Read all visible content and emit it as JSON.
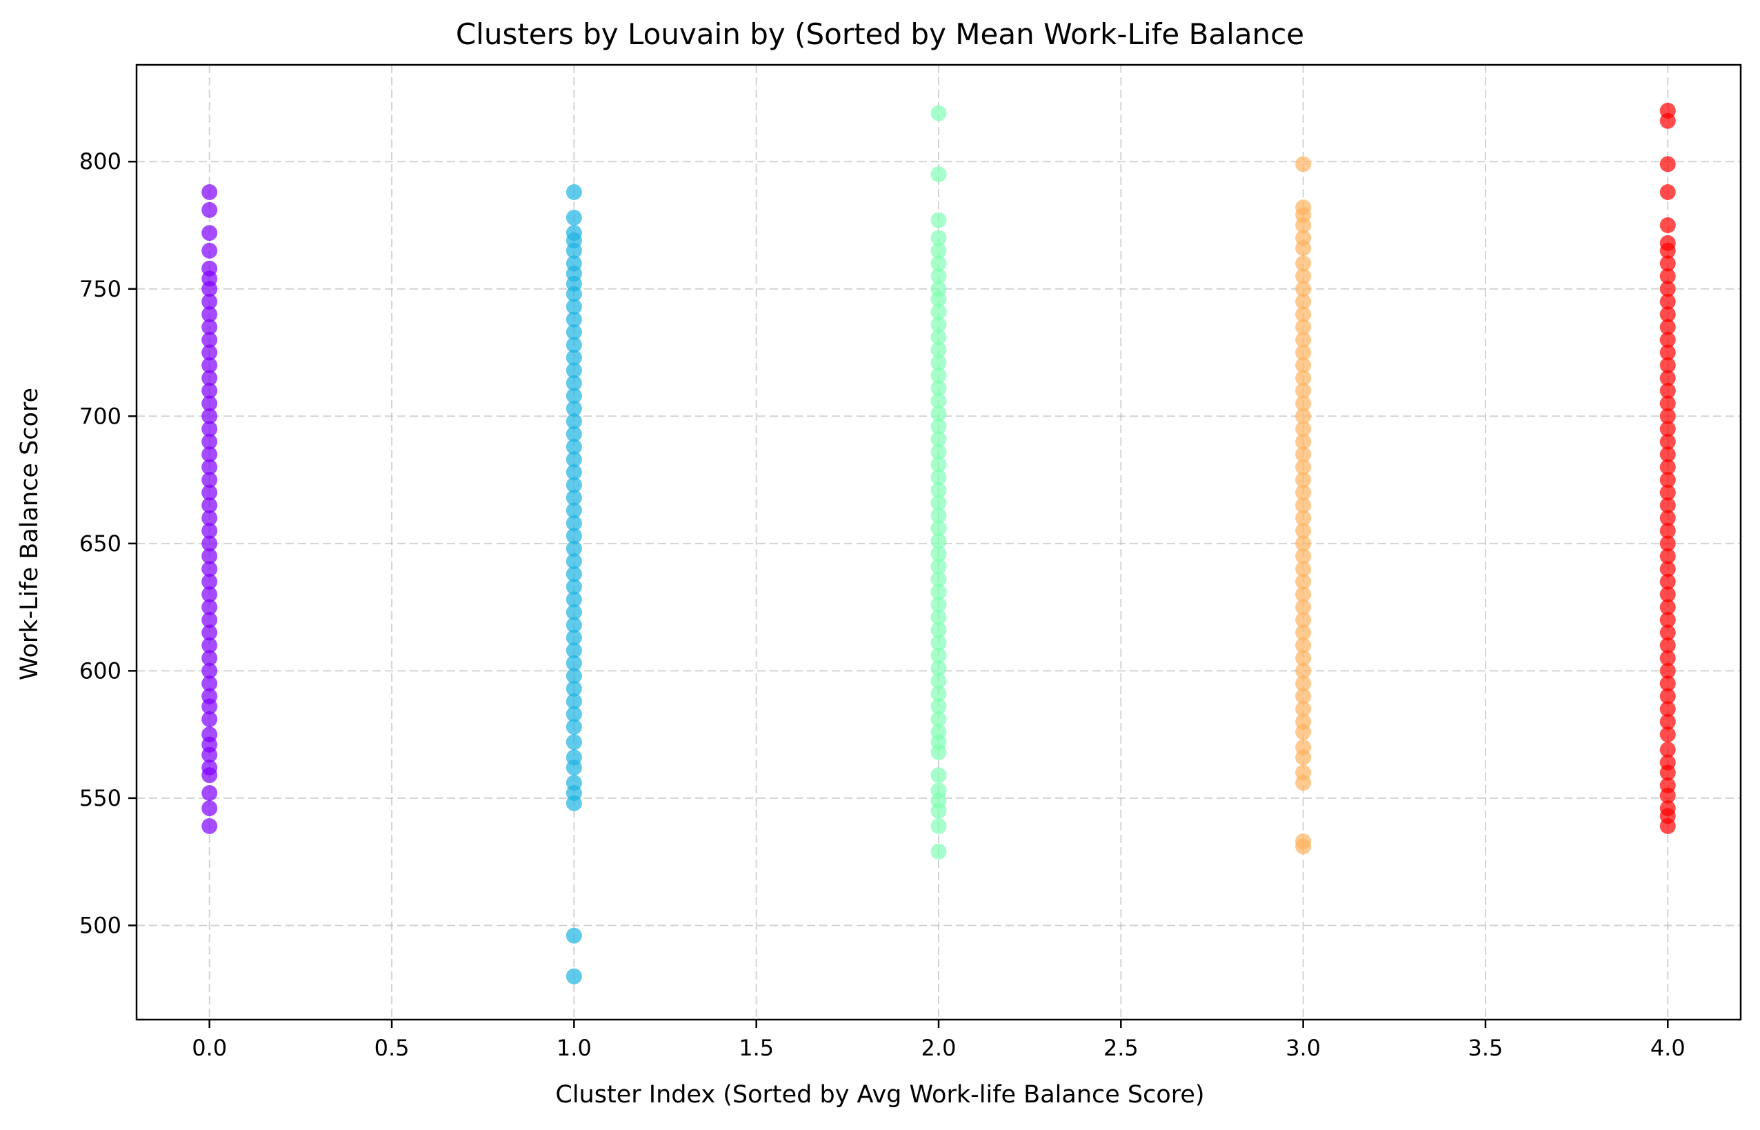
{
  "chart_data": {
    "type": "scatter",
    "title": "Clusters by Louvain by (Sorted by Mean Work-Life Balance",
    "xlabel": "Cluster Index (Sorted by Avg Work-life Balance Score)",
    "ylabel": "Work-Life Balance Score",
    "xlim": [
      -0.2,
      4.2
    ],
    "ylim": [
      463,
      838
    ],
    "xticks": [
      "0.0",
      "0.5",
      "1.0",
      "1.5",
      "2.0",
      "2.5",
      "3.0",
      "3.5",
      "4.0"
    ],
    "yticks": [
      "500",
      "550",
      "600",
      "650",
      "700",
      "750",
      "800"
    ],
    "grid": true,
    "series": [
      {
        "x": 0,
        "color": "#8000ff",
        "y": [
          539,
          546,
          552,
          559,
          562,
          567,
          571,
          575,
          581,
          586,
          590,
          595,
          600,
          605,
          610,
          615,
          620,
          625,
          630,
          635,
          640,
          645,
          650,
          655,
          660,
          665,
          670,
          675,
          680,
          685,
          690,
          695,
          700,
          705,
          710,
          715,
          720,
          725,
          730,
          735,
          740,
          745,
          750,
          754,
          758,
          765,
          772,
          781,
          788
        ]
      },
      {
        "x": 1,
        "color": "#1cb3e3",
        "y": [
          480,
          496,
          548,
          552,
          556,
          562,
          566,
          572,
          578,
          583,
          588,
          593,
          598,
          603,
          608,
          613,
          618,
          623,
          628,
          633,
          638,
          643,
          648,
          653,
          658,
          663,
          668,
          673,
          678,
          683,
          688,
          693,
          698,
          703,
          708,
          713,
          718,
          723,
          728,
          733,
          738,
          743,
          748,
          752,
          756,
          760,
          765,
          769,
          772,
          778,
          788
        ]
      },
      {
        "x": 2,
        "color": "#80ffb4",
        "y": [
          529,
          539,
          545,
          549,
          553,
          559,
          568,
          572,
          576,
          581,
          586,
          591,
          596,
          601,
          606,
          611,
          616,
          621,
          626,
          631,
          636,
          641,
          646,
          651,
          656,
          661,
          666,
          671,
          676,
          681,
          686,
          691,
          696,
          701,
          706,
          711,
          716,
          721,
          726,
          731,
          736,
          741,
          746,
          750,
          755,
          760,
          765,
          770,
          777,
          795,
          819
        ]
      },
      {
        "x": 3,
        "color": "#ffb360",
        "y": [
          531,
          533,
          556,
          560,
          566,
          570,
          576,
          580,
          585,
          590,
          595,
          600,
          605,
          610,
          615,
          620,
          625,
          630,
          635,
          640,
          645,
          650,
          655,
          660,
          665,
          670,
          675,
          680,
          685,
          690,
          695,
          700,
          705,
          710,
          715,
          720,
          725,
          730,
          735,
          740,
          745,
          750,
          755,
          760,
          766,
          770,
          775,
          779,
          782,
          799
        ]
      },
      {
        "x": 4,
        "color": "#ff0000",
        "y": [
          539,
          543,
          546,
          551,
          555,
          560,
          564,
          569,
          575,
          580,
          585,
          590,
          595,
          600,
          605,
          610,
          615,
          620,
          625,
          630,
          635,
          640,
          645,
          650,
          655,
          660,
          665,
          670,
          675,
          680,
          685,
          690,
          695,
          700,
          705,
          710,
          715,
          720,
          725,
          730,
          735,
          740,
          745,
          750,
          755,
          760,
          765,
          768,
          775,
          788,
          799,
          816,
          820
        ]
      }
    ]
  }
}
